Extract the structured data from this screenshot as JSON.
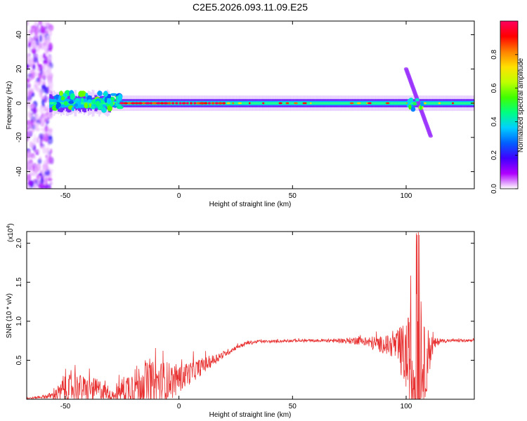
{
  "title": "C2E5.2026.093.11.09.E25",
  "chart_data": [
    {
      "type": "heatmap",
      "xlabel": "Height of straight line (km)",
      "ylabel": "Frequency (Hz)",
      "xlim": [
        -67,
        130
      ],
      "ylim": [
        -50,
        48
      ],
      "xticks": [
        -50,
        0,
        50,
        100
      ],
      "yticks": [
        -40,
        -20,
        0,
        20,
        40
      ],
      "colorbar": {
        "label": "Normalized spectral amplitude",
        "range": [
          0,
          1
        ],
        "ticks": [
          "0.0",
          "0.2",
          "0.4",
          "0.6",
          "0.8"
        ],
        "colormap": [
          "#ffffff",
          "#b000ff",
          "#4000ff",
          "#0060ff",
          "#00d0ff",
          "#00ff80",
          "#40ff00",
          "#c0ff00",
          "#ffe000",
          "#ff8000",
          "#ff0000",
          "#ff0060"
        ]
      },
      "features": [
        {
          "name": "noise-burst",
          "x_range": [
            -67,
            -57
          ],
          "y_range": [
            -50,
            48
          ]
        },
        {
          "name": "central-band",
          "x_range": [
            -57,
            130
          ],
          "y_center": 0,
          "half_width_hz": 4
        },
        {
          "name": "diagonal-streak",
          "from": [
            100,
            20
          ],
          "to": [
            111,
            -20
          ]
        },
        {
          "name": "bright-segment",
          "x_range": [
            -25,
            20
          ],
          "y_center": 0
        }
      ]
    },
    {
      "type": "line",
      "xlabel": "Height of straight line (km)",
      "ylabel": "SNR (10 * v/v)",
      "y_scale_label": "(x10",
      "y_scale_exp": "4",
      "xlim": [
        -67,
        130
      ],
      "ylim": [
        0,
        2.15
      ],
      "xticks": [
        -50,
        0,
        50,
        100
      ],
      "yticks": [
        "0.5",
        "1.0",
        "1.5",
        "2.0"
      ],
      "line_color": "#e83030",
      "envelope": {
        "x": [
          -67,
          -60,
          -55,
          -52,
          -50,
          -45,
          -40,
          -35,
          -30,
          -28,
          -25,
          -20,
          -15,
          -10,
          -5,
          0,
          5,
          10,
          15,
          20,
          25,
          30,
          35,
          40,
          50,
          60,
          70,
          80,
          85,
          90,
          95,
          98,
          100,
          102,
          104,
          105,
          106,
          108,
          110,
          112,
          115,
          120,
          125,
          130
        ],
        "baseline": [
          0.01,
          0.03,
          0.05,
          0.08,
          0.12,
          0.15,
          0.12,
          0.12,
          0.05,
          0.05,
          0.12,
          0.18,
          0.2,
          0.22,
          0.22,
          0.26,
          0.34,
          0.42,
          0.5,
          0.58,
          0.66,
          0.72,
          0.74,
          0.74,
          0.75,
          0.75,
          0.75,
          0.75,
          0.72,
          0.7,
          0.68,
          0.6,
          0.55,
          0.3,
          0.2,
          0.4,
          0.3,
          0.4,
          0.6,
          0.7,
          0.75,
          0.75,
          0.75,
          0.75
        ],
        "amplitude": [
          0.01,
          0.02,
          0.06,
          0.14,
          0.2,
          0.2,
          0.18,
          0.16,
          0.06,
          0.08,
          0.18,
          0.28,
          0.3,
          0.3,
          0.3,
          0.2,
          0.16,
          0.12,
          0.08,
          0.05,
          0.03,
          0.03,
          0.02,
          0.02,
          0.02,
          0.02,
          0.03,
          0.06,
          0.1,
          0.12,
          0.18,
          0.4,
          0.5,
          0.95,
          1.0,
          1.4,
          0.8,
          0.6,
          0.35,
          0.1,
          0.03,
          0.02,
          0.02,
          0.02
        ]
      }
    }
  ]
}
